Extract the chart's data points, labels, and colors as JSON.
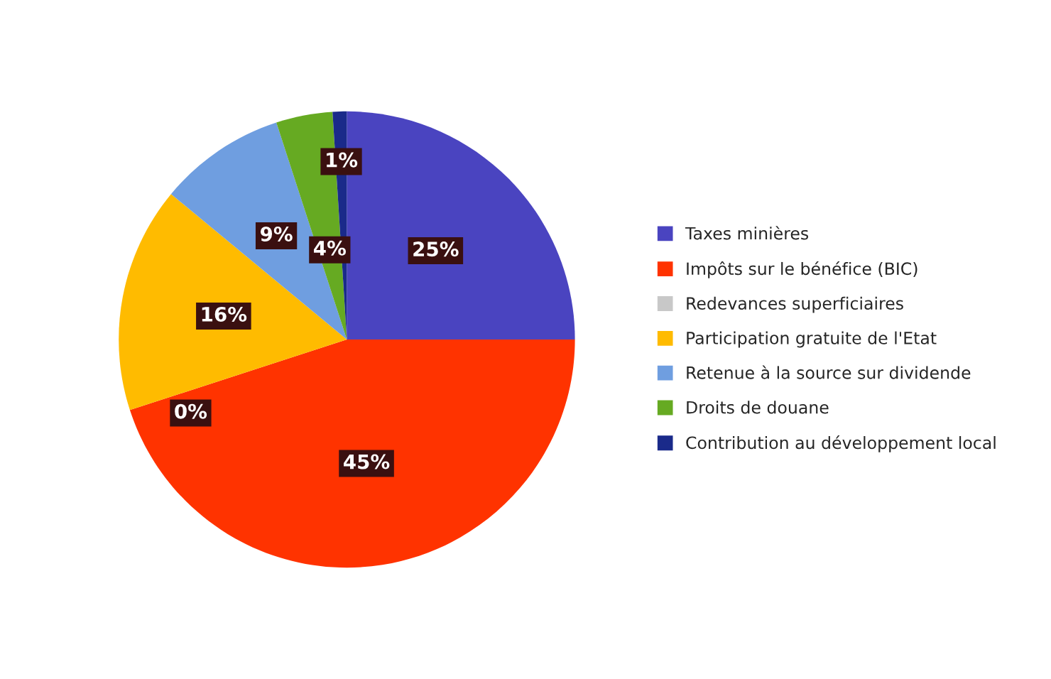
{
  "chart_data": {
    "type": "pie",
    "categories": [
      "Taxes minières",
      "Impôts sur le bénéfice (BIC)",
      "Redevances superficiaires",
      "Participation gratuite de l'Etat",
      "Retenue à la source sur dividende",
      "Droits de douane",
      "Contribution au développement local"
    ],
    "values": [
      25,
      45,
      0,
      16,
      9,
      4,
      1
    ],
    "value_labels": [
      "25%",
      "45%",
      "0%",
      "16%",
      "9%",
      "4%",
      "1%"
    ],
    "colors": [
      "#4a44c0",
      "#ff3300",
      "#c8c8c8",
      "#ffbb00",
      "#6f9ee0",
      "#66aa22",
      "#1a2a8a"
    ],
    "legend": "right"
  }
}
